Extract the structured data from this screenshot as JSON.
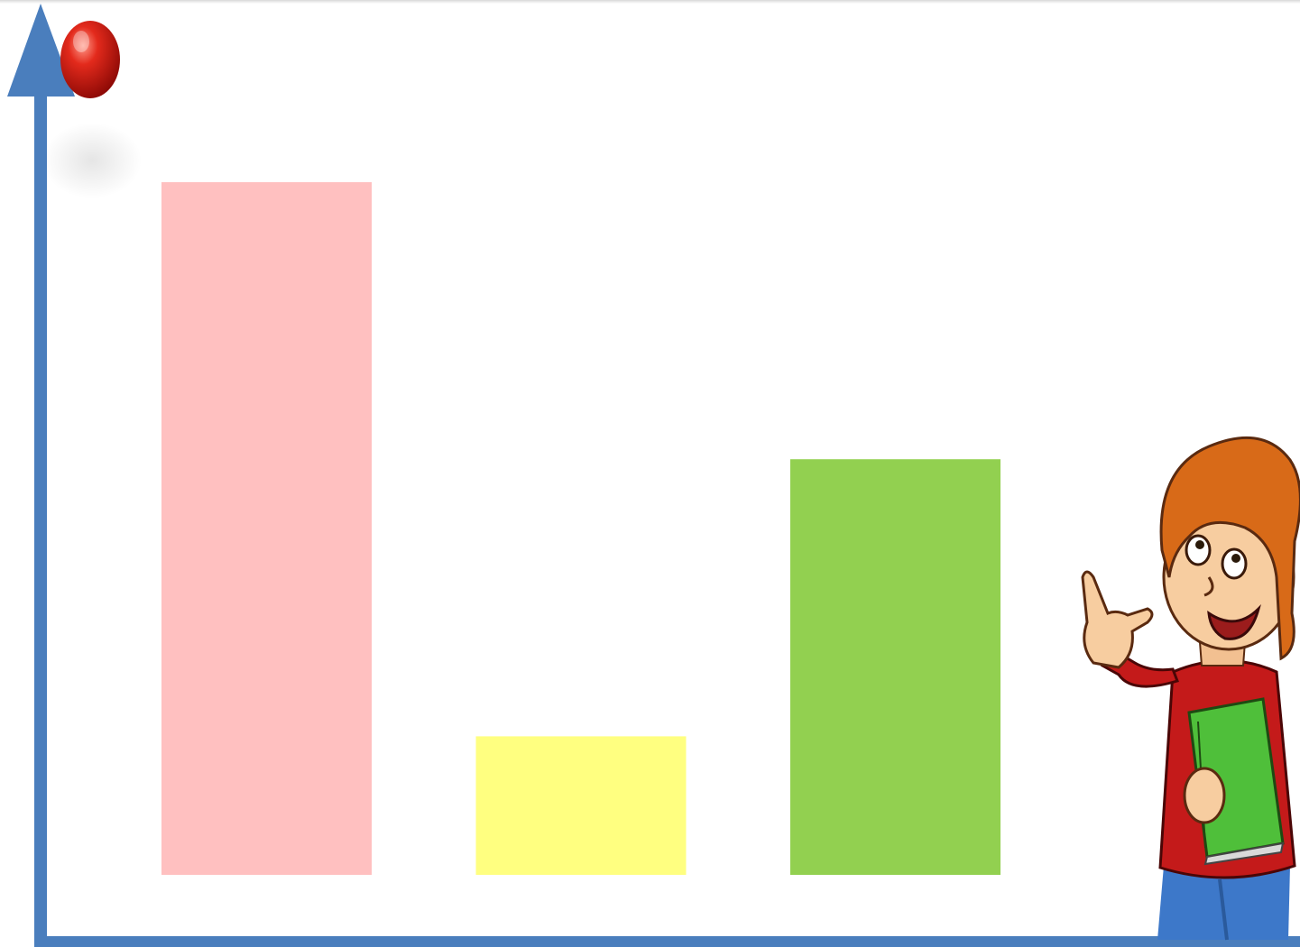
{
  "colors": {
    "axis": "#4a7ebd",
    "bar_pink": "#ffc0c0",
    "bar_yellow": "#ffff80",
    "bar_green": "#92d050",
    "bead_red": "#d81818"
  },
  "icons": {
    "bead": "red-bead-icon",
    "character": "boy-with-book-icon"
  },
  "chart_data": {
    "type": "bar",
    "title": "",
    "xlabel": "",
    "ylabel": "",
    "ylim": [
      0,
      6
    ],
    "grid": false,
    "legend": "none",
    "marker_icon": "red-bead-icon",
    "categories": [
      "",
      "",
      ""
    ],
    "values": [
      5,
      1,
      3
    ],
    "bar_colors": [
      "#ffc0c0",
      "#ffff80",
      "#92d050"
    ]
  }
}
